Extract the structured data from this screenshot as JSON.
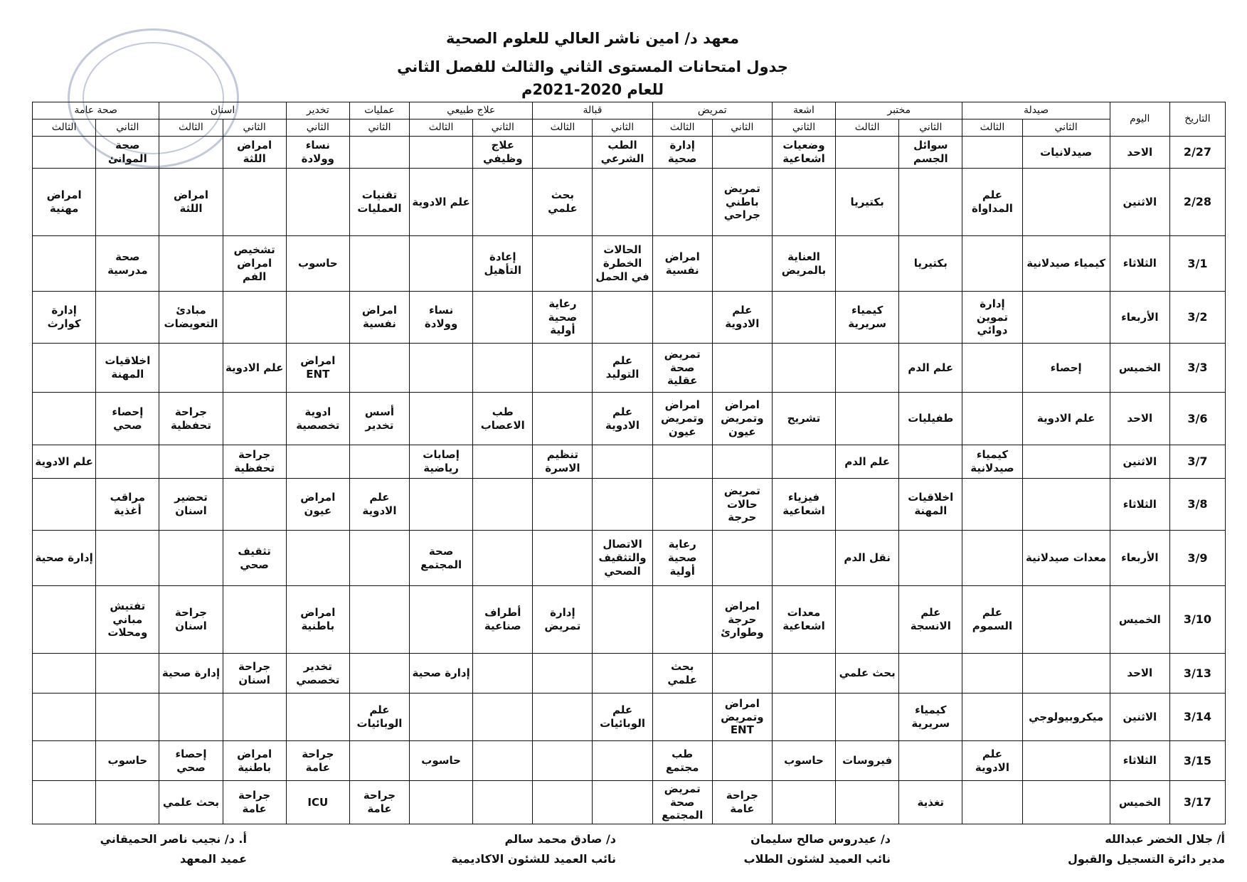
{
  "header": {
    "lines": [
      "معهد د/ امين ناشر العالي للعلوم الصحية",
      "جدول امتحانات المستوى الثاني والثالث للفصل الثاني",
      "للعام 2020-2021م"
    ]
  },
  "table": {
    "date_header": "التاريخ",
    "day_header": "اليوم",
    "groups": [
      {
        "name": "صيدلة",
        "levels": [
          "الثاني",
          "الثالث"
        ]
      },
      {
        "name": "مختبر",
        "levels": [
          "الثاني",
          "الثالث"
        ]
      },
      {
        "name": "اشعة",
        "levels": [
          "الثاني"
        ]
      },
      {
        "name": "تمريض",
        "levels": [
          "الثاني",
          "الثالث"
        ]
      },
      {
        "name": "قبالة",
        "levels": [
          "الثاني",
          "الثالث"
        ]
      },
      {
        "name": "علاج طبيعي",
        "levels": [
          "الثاني",
          "الثالث"
        ]
      },
      {
        "name": "عمليات",
        "levels": [
          "الثاني"
        ]
      },
      {
        "name": "تخدير",
        "levels": [
          "الثاني"
        ]
      },
      {
        "name": "اسنان",
        "levels": [
          "الثاني",
          "الثالث"
        ]
      },
      {
        "name": "صحة عامة",
        "levels": [
          "الثاني",
          "الثالث"
        ]
      }
    ],
    "rows": [
      {
        "date": "2/27",
        "day": "الاحد",
        "cells": [
          "صيدلانيات",
          null,
          "سوائل الجسم",
          null,
          "وضعيات اشعاعية",
          null,
          "إدارة صحية",
          "الطب الشرعي",
          null,
          "علاج وظيفي",
          null,
          null,
          "نساء وولادة",
          "امراض اللثة",
          null,
          "صحة الموانئ",
          null
        ]
      },
      {
        "date": "2/28",
        "day": "الاثنين",
        "cells": [
          null,
          "علم المداواة",
          null,
          "بكتيريا",
          null,
          "تمريض باطني جراحي",
          null,
          null,
          "بحث علمي",
          null,
          "علم الادوية",
          "تقنيات العمليات",
          null,
          null,
          "امراض اللثة",
          null,
          "امراض مهنية"
        ]
      },
      {
        "date": "3/1",
        "day": "الثلاثاء",
        "cells": [
          "كيمياء صيدلانية",
          null,
          "بكتيريا",
          null,
          "العناية بالمريض",
          null,
          "امراض نفسية",
          "الحالات الخطرة في الحمل",
          null,
          "إعادة التأهيل",
          null,
          null,
          "حاسوب",
          "تشخيص امراض الفم",
          null,
          "صحة مدرسية",
          null
        ]
      },
      {
        "date": "3/2",
        "day": "الأربعاء",
        "cells": [
          null,
          "إدارة تموين دوائي",
          null,
          "كيمياء سريرية",
          null,
          "علم الادوية",
          null,
          null,
          "رعاية صحية أولية",
          null,
          "نساء وولادة",
          "امراض نفسية",
          null,
          null,
          "مبادئ التعويضات",
          null,
          "إدارة كوارث"
        ]
      },
      {
        "date": "3/3",
        "day": "الخميس",
        "cells": [
          "إحصاء",
          null,
          "علم الدم",
          null,
          null,
          null,
          "تمريض صحة عقلية",
          "علم التوليد",
          null,
          null,
          null,
          null,
          "امراض ENT",
          "علم الادوية",
          null,
          "اخلاقيات المهنة",
          null
        ]
      },
      {
        "date": "3/6",
        "day": "الاحد",
        "cells": [
          "علم الادوية",
          null,
          "طفيليات",
          null,
          "تشريح",
          "امراض وتمريض عيون",
          "امراض وتمريض عيون",
          "علم الادوية",
          null,
          "طب الاعصاب",
          null,
          "أسس تخدير",
          "ادوية تخصصية",
          null,
          "جراحة تحفظية",
          "إحصاء صحي",
          null
        ]
      },
      {
        "date": "3/7",
        "day": "الاثنين",
        "cells": [
          null,
          "كيمياء صيدلانية",
          null,
          "علم الدم",
          null,
          null,
          null,
          null,
          "تنظيم الاسرة",
          null,
          "إصابات رياضية",
          null,
          null,
          "جراحة تحفظية",
          null,
          null,
          "علم الادوية"
        ]
      },
      {
        "date": "3/8",
        "day": "الثلاثاء",
        "cells": [
          null,
          null,
          "اخلاقيات المهنة",
          null,
          "فيزياء اشعاعية",
          "تمريض حالات حرجة",
          null,
          null,
          null,
          null,
          null,
          "علم الادوية",
          "امراض عيون",
          null,
          "تحضير اسنان",
          "مراقب أغذية",
          null
        ]
      },
      {
        "date": "3/9",
        "day": "الأربعاء",
        "cells": [
          "معدات صيدلانية",
          null,
          null,
          "نقل الدم",
          null,
          null,
          "رعاية صحية أولية",
          "الاتصال والتثقيف الصحي",
          null,
          null,
          "صحة المجتمع",
          null,
          null,
          "تثقيف صحي",
          null,
          null,
          "إدارة صحية"
        ]
      },
      {
        "date": "3/10",
        "day": "الخميس",
        "cells": [
          null,
          "علم السموم",
          "علم الانسجة",
          null,
          "معدات اشعاعية",
          "امراض حرجة وطوارئ",
          null,
          null,
          "إدارة تمريض",
          "أطراف صناعية",
          null,
          null,
          "امراض باطنية",
          null,
          "جراحة اسنان",
          "تفتيش مباني ومحلات",
          null
        ]
      },
      {
        "date": "3/13",
        "day": "الاحد",
        "cells": [
          null,
          null,
          null,
          "بحث علمي",
          null,
          null,
          "بحث علمي",
          null,
          null,
          null,
          "إدارة صحية",
          null,
          "تخدير تخصصي",
          "جراحة اسنان",
          "إدارة صحية",
          null,
          null
        ]
      },
      {
        "date": "3/14",
        "day": "الاثنين",
        "cells": [
          "ميكروبيولوجي",
          null,
          "كيمياء سريرية",
          null,
          null,
          "امراض وتمريض ENT",
          null,
          "علم الوبائيات",
          null,
          null,
          null,
          "علم الوبائيات",
          null,
          null,
          null,
          null,
          null
        ]
      },
      {
        "date": "3/15",
        "day": "الثلاثاء",
        "cells": [
          null,
          "علم الادوية",
          null,
          "فيروسات",
          "حاسوب",
          null,
          "طب مجتمع",
          null,
          null,
          null,
          "حاسوب",
          null,
          "جراحة عامة",
          "امراض باطنية",
          "إحصاء صحي",
          "حاسوب",
          null
        ]
      },
      {
        "date": "3/17",
        "day": "الخميس",
        "cells": [
          null,
          null,
          "تغذية",
          null,
          null,
          "جراحة عامة",
          "تمريض صحة المجتمع",
          null,
          null,
          null,
          null,
          "جراحة عامة",
          "ICU",
          "جراحة عامة",
          "بحث علمي",
          null,
          null
        ]
      }
    ]
  },
  "signatures": [
    {
      "name": "أ/ جلال الخضر عبدالله",
      "title": "مدير دائرة التسجيل والقبول"
    },
    {
      "name": "د/ عيدروس صالح سليمان",
      "title": "نائب العميد لشئون الطلاب"
    },
    {
      "name": "د/ صادق محمد سالم",
      "title": "نائب العميد للشئون الاكاديمية"
    },
    {
      "name": "أ. د/ نجيب ناصر الحميقاني",
      "title": "عميد المعهد"
    }
  ]
}
